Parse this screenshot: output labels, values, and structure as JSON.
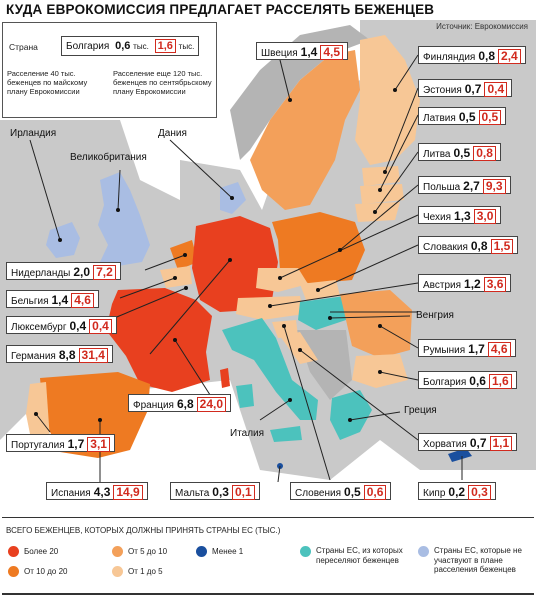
{
  "title": "КУДА ЕВРОКОМИССИЯ ПРЕДЛАГАЕТ РАССЕЛЯТЬ БЕЖЕНЦЕВ",
  "source": "Источник: Еврокомиссия",
  "legend_top": {
    "country_word": "Страна",
    "example_country": "Болгария",
    "example_v1": "0,6",
    "example_v1_unit": "тыс.",
    "example_v2": "1,6",
    "example_v2_unit": "тыс.",
    "note1": "Расселение 40 тыс. беженцев по майскому плану Еврокомиссии",
    "note2": "Расселение еще 120 тыс. беженцев по сентябрьскому плану Еврокомиссии"
  },
  "countries": [
    {
      "name": "Швеция",
      "v1": "1,4",
      "v2": "4,5"
    },
    {
      "name": "Финляндия",
      "v1": "0,8",
      "v2": "2,4"
    },
    {
      "name": "Эстония",
      "v1": "0,7",
      "v2": "0,4"
    },
    {
      "name": "Латвия",
      "v1": "0,5",
      "v2": "0,5"
    },
    {
      "name": "Литва",
      "v1": "0,5",
      "v2": "0,8"
    },
    {
      "name": "Польша",
      "v1": "2,7",
      "v2": "9,3"
    },
    {
      "name": "Чехия",
      "v1": "1,3",
      "v2": "3,0"
    },
    {
      "name": "Словакия",
      "v1": "0,8",
      "v2": "1,5"
    },
    {
      "name": "Австрия",
      "v1": "1,2",
      "v2": "3,6"
    },
    {
      "name": "Румыния",
      "v1": "1,7",
      "v2": "4,6"
    },
    {
      "name": "Болгария",
      "v1": "0,6",
      "v2": "1,6"
    },
    {
      "name": "Хорватия",
      "v1": "0,7",
      "v2": "1,1"
    },
    {
      "name": "Кипр",
      "v1": "0,2",
      "v2": "0,3"
    },
    {
      "name": "Нидерланды",
      "v1": "2,0",
      "v2": "7,2"
    },
    {
      "name": "Бельгия",
      "v1": "1,4",
      "v2": "4,6"
    },
    {
      "name": "Люксембург",
      "v1": "0,4",
      "v2": "0,4"
    },
    {
      "name": "Германия",
      "v1": "8,8",
      "v2": "31,4"
    },
    {
      "name": "Франция",
      "v1": "6,8",
      "v2": "24,0"
    },
    {
      "name": "Португалия",
      "v1": "1,7",
      "v2": "3,1"
    },
    {
      "name": "Испания",
      "v1": "4,3",
      "v2": "14,9"
    },
    {
      "name": "Мальта",
      "v1": "0,3",
      "v2": "0,1"
    },
    {
      "name": "Словения",
      "v1": "0,5",
      "v2": "0,6"
    }
  ],
  "plain_labels": {
    "ireland": "Ирландия",
    "uk": "Великобритания",
    "denmark": "Дания",
    "hungary": "Венгрия",
    "greece": "Греция",
    "italy": "Италия"
  },
  "legend": {
    "heading": "ВСЕГО БЕЖЕНЦЕВ, КОТОРЫХ ДОЛЖНЫ ПРИНЯТЬ СТРАНЫ ЕС (ТЫС.)",
    "items": [
      {
        "label": "Более 20",
        "color": "#e8401f"
      },
      {
        "label": "От 10 до 20",
        "color": "#ee7a22"
      },
      {
        "label": "От 5 до 10",
        "color": "#f3a05a"
      },
      {
        "label": "От 1 до 5",
        "color": "#f7c796"
      },
      {
        "label": "Менее 1",
        "color": "#1a4f9e"
      },
      {
        "label": "Страны ЕС, из которых переселяют беженцев",
        "color": "#4cc2bd"
      },
      {
        "label": "Страны ЕС, которые не участвуют в плане расселения беженцев",
        "color": "#a9bde3"
      }
    ]
  }
}
